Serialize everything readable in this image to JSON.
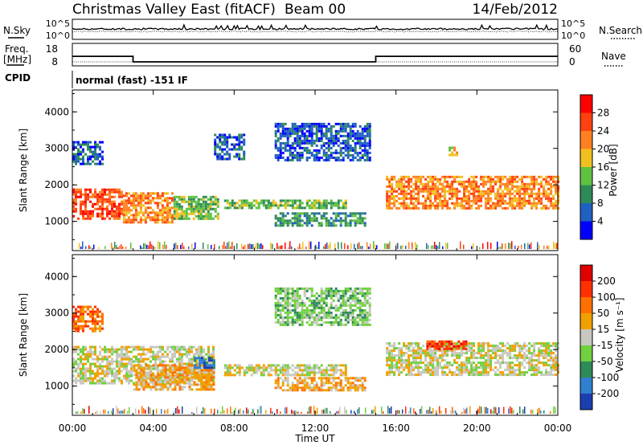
{
  "header": {
    "title": "Christmas Valley East (fitACF)",
    "beam": "Beam 00",
    "date": "14/Feb/2012"
  },
  "mini_panels": {
    "nsky_label": "N.Sky",
    "nsearch_label": "N.Search",
    "nsky_scale": [
      "10^5",
      "10^0"
    ],
    "freq_label": "Freq.",
    "freq_unit": "[MHz]",
    "freq_ticks": [
      "18",
      "8"
    ],
    "nave_label": "Nave",
    "nave_ticks": [
      "60",
      "0"
    ],
    "cpid_label": "CPID",
    "cpid_value": "normal (fast) -151 IF",
    "freq_series": [
      {
        "t": 0.0,
        "mhz": 14.8
      },
      {
        "t": 3.0,
        "mhz": 14.8
      },
      {
        "t": 3.0,
        "mhz": 10.5
      },
      {
        "t": 15.0,
        "mhz": 10.5
      },
      {
        "t": 15.0,
        "mhz": 14.8
      },
      {
        "t": 24.0,
        "mhz": 14.8
      }
    ]
  },
  "chart_data": [
    {
      "type": "heatmap",
      "name": "power",
      "ylabel": "Slant Range [km]",
      "ylim": [
        200,
        4600
      ],
      "yticks": [
        "1000",
        "2000",
        "3000",
        "4000"
      ],
      "xlim": [
        0,
        24
      ],
      "colorbar_label": "Power [dB]",
      "colorbar_ticks": [
        "4",
        "8",
        "12",
        "16",
        "20",
        "24",
        "28"
      ],
      "colors": [
        "#0000ff",
        "#2060c0",
        "#2e8b57",
        "#60c040",
        "#f0c020",
        "#ff8020",
        "#ff4010",
        "#ff0000"
      ],
      "regions": [
        {
          "t0": 0.0,
          "t1": 2.5,
          "r0": 1050,
          "r1": 1900,
          "level": 6
        },
        {
          "t0": 2.5,
          "t1": 5.0,
          "r0": 1000,
          "r1": 1800,
          "level": 5
        },
        {
          "t0": 5.0,
          "t1": 7.2,
          "r0": 1100,
          "r1": 1700,
          "level": 3
        },
        {
          "t0": 7.5,
          "t1": 13.5,
          "r0": 1350,
          "r1": 1600,
          "level": 3
        },
        {
          "t0": 10.0,
          "t1": 14.5,
          "r0": 900,
          "r1": 1250,
          "level": 2
        },
        {
          "t0": 15.5,
          "t1": 24.0,
          "r0": 1350,
          "r1": 2250,
          "level": 5
        },
        {
          "t0": 0.0,
          "t1": 1.5,
          "r0": 2600,
          "r1": 3200,
          "level": 1
        },
        {
          "t0": 7.0,
          "t1": 8.5,
          "r0": 2700,
          "r1": 3400,
          "level": 1
        },
        {
          "t0": 10.0,
          "t1": 14.7,
          "r0": 2700,
          "r1": 3700,
          "level": 1
        },
        {
          "t0": 18.6,
          "t1": 19.0,
          "r0": 2850,
          "r1": 3050,
          "level": 4
        }
      ]
    },
    {
      "type": "heatmap",
      "name": "velocity",
      "ylabel": "Slant Range [km]",
      "ylim": [
        200,
        4600
      ],
      "yticks": [
        "1000",
        "2000",
        "3000",
        "4000"
      ],
      "xlim": [
        0,
        24
      ],
      "colorbar_label": "Velocity [m s⁻¹]",
      "colorbar_ticks": [
        "200",
        "100",
        "50",
        "15",
        "-15",
        "-50",
        "-100",
        "-200"
      ],
      "colors": [
        "#1c3fb0",
        "#3080d0",
        "#2e8b57",
        "#70d040",
        "#c8c8c0",
        "#f0a000",
        "#ff7000",
        "#ff3000",
        "#e00000"
      ],
      "regions": [
        {
          "t0": 0.0,
          "t1": 7.0,
          "r0": 1100,
          "r1": 2100,
          "level": 4
        },
        {
          "t0": 3.0,
          "t1": 7.0,
          "r0": 900,
          "r1": 1600,
          "level": 5
        },
        {
          "t0": 6.0,
          "t1": 7.0,
          "r0": 1500,
          "r1": 1800,
          "level": 1
        },
        {
          "t0": 7.5,
          "t1": 13.5,
          "r0": 1300,
          "r1": 1600,
          "level": 4
        },
        {
          "t0": 10.0,
          "t1": 14.5,
          "r0": 900,
          "r1": 1250,
          "level": 5
        },
        {
          "t0": 15.5,
          "t1": 24.0,
          "r0": 1300,
          "r1": 2200,
          "level": 4
        },
        {
          "t0": 17.5,
          "t1": 19.5,
          "r0": 2000,
          "r1": 2250,
          "level": 7
        },
        {
          "t0": 10.0,
          "t1": 14.7,
          "r0": 2700,
          "r1": 3700,
          "level": 3
        },
        {
          "t0": 0.0,
          "t1": 1.5,
          "r0": 2500,
          "r1": 3200,
          "level": 6
        }
      ]
    }
  ],
  "x_axis": {
    "ticks": [
      "00:00",
      "04:00",
      "08:00",
      "12:00",
      "16:00",
      "20:00",
      "00:00"
    ],
    "label": "Time UT"
  }
}
